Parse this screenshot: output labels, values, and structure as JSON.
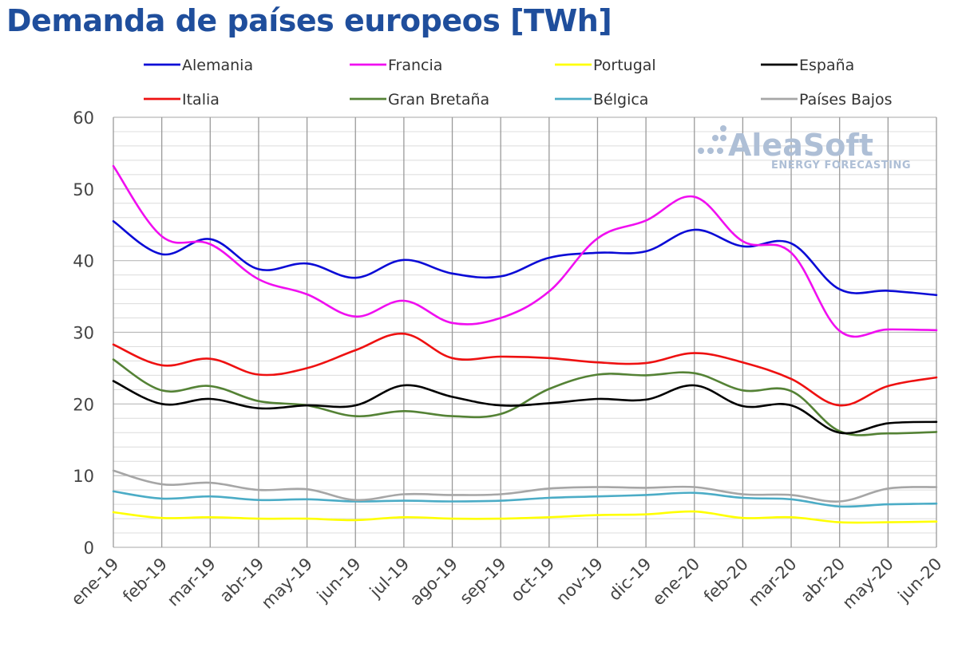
{
  "chart_data": {
    "type": "line",
    "title": "Demanda de países europeos [TWh]",
    "xlabel": "",
    "ylabel": "",
    "ylim": [
      0,
      60
    ],
    "yticks": [
      0,
      10,
      20,
      30,
      40,
      50,
      60
    ],
    "grid": true,
    "legend_position": "top",
    "categories": [
      "ene-19",
      "feb-19",
      "mar-19",
      "abr-19",
      "may-19",
      "jun-19",
      "jul-19",
      "ago-19",
      "sep-19",
      "oct-19",
      "nov-19",
      "dic-19",
      "ene-20",
      "feb-20",
      "mar-20",
      "abr-20",
      "may-20",
      "jun-20"
    ],
    "series": [
      {
        "name": "Alemania",
        "color": "#0b0bd6",
        "values": [
          45.5,
          40.9,
          43.0,
          38.8,
          39.6,
          37.6,
          40.1,
          38.2,
          37.8,
          40.4,
          41.1,
          41.3,
          44.3,
          42.0,
          42.4,
          36.0,
          35.8,
          35.2
        ]
      },
      {
        "name": "Francia",
        "color": "#f00ff0",
        "values": [
          53.2,
          43.4,
          42.3,
          37.4,
          35.3,
          32.2,
          34.4,
          31.3,
          32.0,
          35.7,
          43.1,
          45.6,
          48.9,
          42.7,
          41.1,
          30.2,
          30.4,
          30.3
        ]
      },
      {
        "name": "Portugal",
        "color": "#ffff00",
        "values": [
          4.9,
          4.1,
          4.2,
          4.0,
          4.0,
          3.8,
          4.2,
          4.0,
          4.0,
          4.2,
          4.5,
          4.6,
          5.0,
          4.1,
          4.2,
          3.5,
          3.5,
          3.6
        ]
      },
      {
        "name": "España",
        "color": "#000000",
        "values": [
          23.2,
          20.0,
          20.7,
          19.4,
          19.8,
          19.8,
          22.6,
          21.0,
          19.8,
          20.1,
          20.7,
          20.6,
          22.6,
          19.7,
          19.8,
          16.0,
          17.3,
          17.5
        ]
      },
      {
        "name": "Italia",
        "color": "#ee1111",
        "values": [
          28.3,
          25.4,
          26.3,
          24.1,
          25.0,
          27.5,
          29.8,
          26.4,
          26.6,
          26.4,
          25.8,
          25.7,
          27.1,
          25.8,
          23.5,
          19.8,
          22.5,
          23.7
        ]
      },
      {
        "name": "Gran Bretaña",
        "color": "#548235",
        "values": [
          26.2,
          21.9,
          22.5,
          20.4,
          19.8,
          18.3,
          19.0,
          18.3,
          18.6,
          22.1,
          24.1,
          24.0,
          24.3,
          21.9,
          21.8,
          16.2,
          15.9,
          16.1
        ]
      },
      {
        "name": "Bélgica",
        "color": "#4bacc6",
        "values": [
          7.8,
          6.8,
          7.1,
          6.6,
          6.7,
          6.4,
          6.5,
          6.4,
          6.5,
          6.9,
          7.1,
          7.3,
          7.6,
          6.9,
          6.7,
          5.7,
          6.0,
          6.1
        ]
      },
      {
        "name": "Países Bajos",
        "color": "#a6a6a6",
        "values": [
          10.7,
          8.8,
          9.0,
          8.0,
          8.1,
          6.6,
          7.4,
          7.3,
          7.4,
          8.2,
          8.4,
          8.3,
          8.4,
          7.4,
          7.3,
          6.4,
          8.2,
          8.4
        ]
      }
    ]
  },
  "watermark": {
    "brand": "AleaSoft",
    "tagline": "ENERGY FORECASTING"
  }
}
